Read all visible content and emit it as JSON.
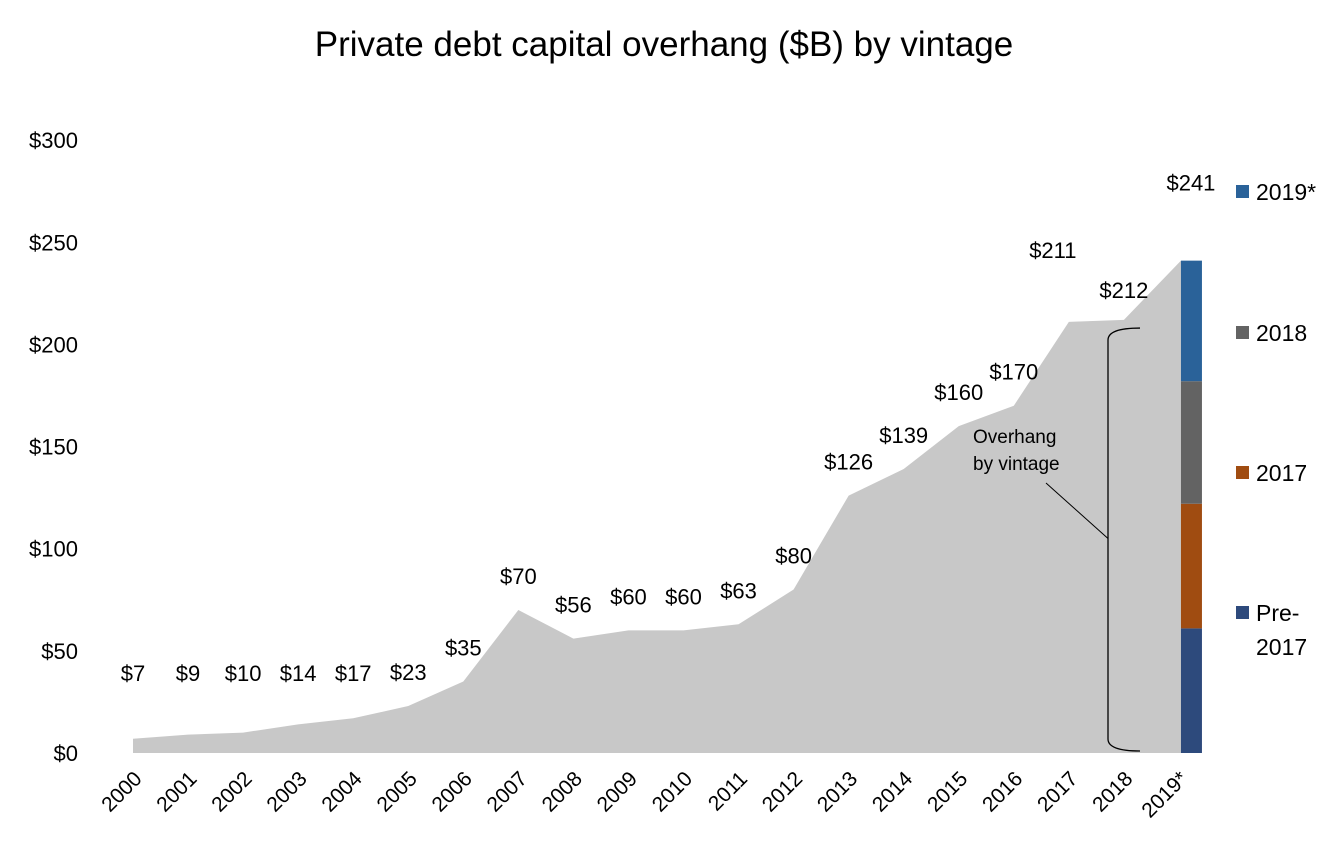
{
  "chart_data": {
    "type": "area",
    "title": "Private debt capital overhang ($B) by vintage",
    "xlabel": "",
    "ylabel": "",
    "categories": [
      "2000",
      "2001",
      "2002",
      "2003",
      "2004",
      "2005",
      "2006",
      "2007",
      "2008",
      "2009",
      "2010",
      "2011",
      "2012",
      "2013",
      "2014",
      "2015",
      "2016",
      "2017",
      "2018",
      "2019*"
    ],
    "values": [
      7,
      9,
      10,
      14,
      17,
      23,
      35,
      70,
      56,
      60,
      60,
      63,
      80,
      126,
      139,
      160,
      170,
      211,
      212,
      241
    ],
    "value_labels": [
      "$7",
      "$9",
      "$10",
      "$14",
      "$17",
      "$23",
      "$35",
      "$70",
      "$56",
      "$60",
      "$60",
      "$63",
      "$80",
      "$126",
      "$139",
      "$160",
      "$170",
      "$211",
      "$212",
      "$241"
    ],
    "ylim": [
      0,
      300
    ],
    "yticks": [
      0,
      50,
      100,
      150,
      200,
      250,
      300
    ],
    "ytick_labels": [
      "$0",
      "$50",
      "$100",
      "$150",
      "$200",
      "$250",
      "$300"
    ],
    "area_color": "#c8c8c8",
    "grid": false,
    "stacked_bar": {
      "category": "2019*",
      "segments": [
        {
          "name": "Pre-2017",
          "value": 61,
          "color": "#2d4a7c"
        },
        {
          "name": "2017",
          "value": 61,
          "color": "#a04c11"
        },
        {
          "name": "2018",
          "value": 60,
          "color": "#636363"
        },
        {
          "name": "2019*",
          "value": 59,
          "color": "#2a6299"
        }
      ]
    },
    "legend": {
      "placement": "right",
      "entries": [
        {
          "label": "2019*",
          "color": "#2a6299"
        },
        {
          "label": "2018",
          "color": "#636363"
        },
        {
          "label": "2017",
          "color": "#a04c11"
        },
        {
          "label_lines": [
            "Pre-",
            "2017"
          ],
          "color": "#2d4a7c"
        }
      ]
    },
    "annotation": {
      "lines": [
        "Overhang",
        "by vintage"
      ]
    }
  }
}
